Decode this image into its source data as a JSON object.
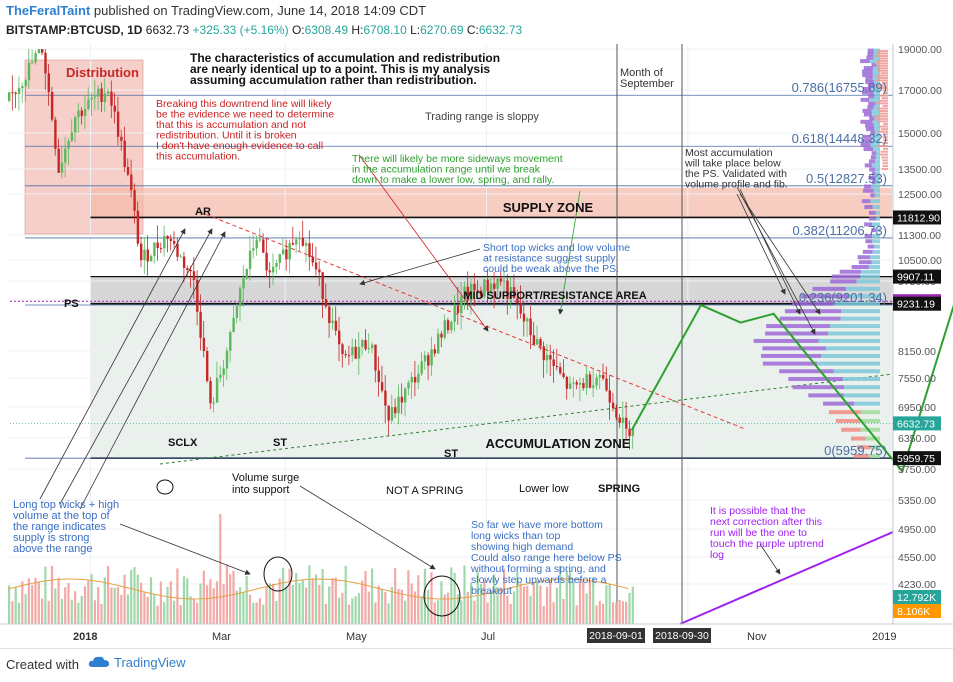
{
  "header": {
    "author": "TheFeralTaint",
    "published": "published on TradingView.com, June 14, 2018 14:09 CDT",
    "symbol": "BITSTAMP:BTCUSD, 1D",
    "last": "6632.73",
    "change": "+325.33 (+5.16%)",
    "ohlc": [
      {
        "k": "O:",
        "v": "6308.49"
      },
      {
        "k": "H:",
        "v": "6708.10"
      },
      {
        "k": "L:",
        "v": "6270.69"
      },
      {
        "k": "C:",
        "v": "6632.73"
      }
    ]
  },
  "footer": {
    "created_with": "Created with",
    "brand": "TradingView"
  },
  "colors": {
    "up": "#26a69a",
    "down": "#ef5350",
    "candle_body_up": "#5cb85c",
    "supply": "#f4b8a8",
    "accum": "#d8e6df",
    "mid": "#bdbdbd",
    "distribution": "#f2a9a0",
    "fib": "#4a6fa5",
    "purple": "#a020f0",
    "annotation_red": "#cc2222",
    "annotation_green": "#2ea02e",
    "annotation_blue": "#3a6fc4"
  },
  "chart_data": {
    "type": "candlestick",
    "symbol": "BITSTAMP:BTCUSD",
    "interval": "1D",
    "ylim": [
      3850,
      19600
    ],
    "y_ticks": [
      "19000.00",
      "17000.00",
      "15000.00",
      "13500.00",
      "12500.00",
      "11300.00",
      "10500.00",
      "9750.00",
      "8150.00",
      "7550.00",
      "6950.00",
      "6350.00",
      "5750.00",
      "5350.00",
      "4950.00",
      "4550.00",
      "4230.00"
    ],
    "x_tick_labels": [
      "2018",
      "Mar",
      "May",
      "Jul",
      "Nov",
      "2019"
    ],
    "x_date_markers": [
      "2018-09-01",
      "2018-09-30"
    ],
    "price_path": [
      [
        "2017-12-07",
        16500
      ],
      [
        "2017-12-17",
        19100
      ],
      [
        "2017-12-22",
        13500
      ],
      [
        "2017-12-27",
        15800
      ],
      [
        "2018-01-06",
        17100
      ],
      [
        "2018-01-16",
        10500
      ],
      [
        "2018-01-24",
        11300
      ],
      [
        "2018-02-01",
        9800
      ],
      [
        "2018-02-06",
        6900
      ],
      [
        "2018-02-12",
        8400
      ],
      [
        "2018-02-20",
        11300
      ],
      [
        "2018-02-24",
        9900
      ],
      [
        "2018-03-05",
        11500
      ],
      [
        "2018-03-18",
        7900
      ],
      [
        "2018-03-26",
        8400
      ],
      [
        "2018-04-01",
        6700
      ],
      [
        "2018-04-12",
        7900
      ],
      [
        "2018-04-24",
        9400
      ],
      [
        "2018-05-05",
        9800
      ],
      [
        "2018-05-16",
        8300
      ],
      [
        "2018-05-26",
        7300
      ],
      [
        "2018-06-04",
        7650
      ],
      [
        "2018-06-12",
        6450
      ],
      [
        "2018-06-14",
        6632.73
      ]
    ],
    "projection_path": [
      [
        "2018-06-14",
        6500
      ],
      [
        "2018-07-05",
        9200
      ],
      [
        "2018-07-17",
        8800
      ],
      [
        "2018-07-27",
        9000
      ],
      [
        "2018-09-04",
        5720
      ],
      [
        "2018-10-01",
        12900
      ]
    ],
    "zones": [
      {
        "name": "SUPPLY ZONE",
        "from": 11812.9,
        "to": 12750
      },
      {
        "name": "MID SUPPORT/RESISTANCE AREA",
        "from": 9231.19,
        "to": 9907.11
      },
      {
        "name": "ACCUMULATION ZONE",
        "from": 5959.75,
        "to": 9231.19
      },
      {
        "name": "Distribution",
        "from": 11300,
        "to": 19600
      }
    ],
    "fib_levels": [
      {
        "label": "0.786(16755.89)",
        "value": 16755.89
      },
      {
        "label": "0.618(14448.32)",
        "value": 14448.32
      },
      {
        "label": "0.5(12827.53)",
        "value": 12827.53
      },
      {
        "label": "0.382(11206.73)",
        "value": 11206.73
      },
      {
        "label": "0.236(9201.34)",
        "value": 9201.34
      },
      {
        "label": "0(5959.75)",
        "value": 5959.75
      }
    ],
    "price_tags": [
      {
        "label": "11812.90",
        "value": 11812.9,
        "bg": "#111111"
      },
      {
        "label": "9907.11",
        "value": 9907.11,
        "bg": "#111111"
      },
      {
        "label": "9288.31",
        "value": 9288.31,
        "bg": "#9c27b0"
      },
      {
        "label": "9231.19",
        "value": 9231.19,
        "bg": "#111111"
      },
      {
        "label": "6632.73",
        "value": 6632.73,
        "bg": "#26a69a"
      },
      {
        "label": "5959.75",
        "value": 5959.75,
        "bg": "#111111"
      }
    ],
    "volume_tags": [
      {
        "label": "12.792K",
        "bg": "#26a69a"
      },
      {
        "label": "8.106K",
        "bg": "#ff9800"
      }
    ],
    "labels": {
      "ar": "AR",
      "ps": "PS",
      "sclx": "SCLX",
      "st1": "ST",
      "st2": "ST",
      "st3": "ST",
      "not_spring": "NOT A SPRING",
      "lower_low": "Lower low",
      "spring": "SPRING",
      "supply_zone": "SUPPLY ZONE",
      "mid_area": "MID SUPPORT/RESISTANCE AREA",
      "accum_zone": "ACCUMULATION ZONE",
      "distribution": "Distribution",
      "month_sept": [
        "Month of",
        "September"
      ],
      "trading_range": "Trading range is sloppy",
      "volume_surge": [
        "Volume surge",
        "into support"
      ]
    },
    "annotations": {
      "title": [
        "The characteristics of accumulation and redistribution",
        "are nearly identical up to a point. This is my analysis",
        "assuming accumulation rather than redistribution."
      ],
      "red": [
        "Breaking this downtrend line will likely",
        "be the evidence we need to determine",
        "that this is accumulation and not",
        "redistribution. Until it is broken",
        "I don't have enough evidence to call",
        "this accumulation."
      ],
      "green": [
        "There will likely be more sideways movement",
        "in the accumulation range until we break",
        "down to make a lower low, spring, and rally."
      ],
      "short_wicks": [
        "Short top wicks and low volume",
        "at resistance suggest supply",
        "could be weak above the PS."
      ],
      "most_accum": [
        "Most accumulation",
        "will take place below",
        "the PS. Validated with",
        "volume profile and fib."
      ],
      "long_wicks": [
        "Long top wicks + high",
        "volume at the top of",
        "the range indicates",
        "supply is strong",
        "above the range"
      ],
      "bottom_wicks": [
        "So far we have more bottom",
        "long wicks than top",
        "showing high demand",
        "Could also range here below PS",
        "without forming a spring, and",
        "slowly step upwards before a",
        "breakout"
      ],
      "purple": [
        "It is possible that the",
        "next correction after this",
        "run will be the one to",
        "touch the purple uptrend",
        "log"
      ]
    }
  }
}
